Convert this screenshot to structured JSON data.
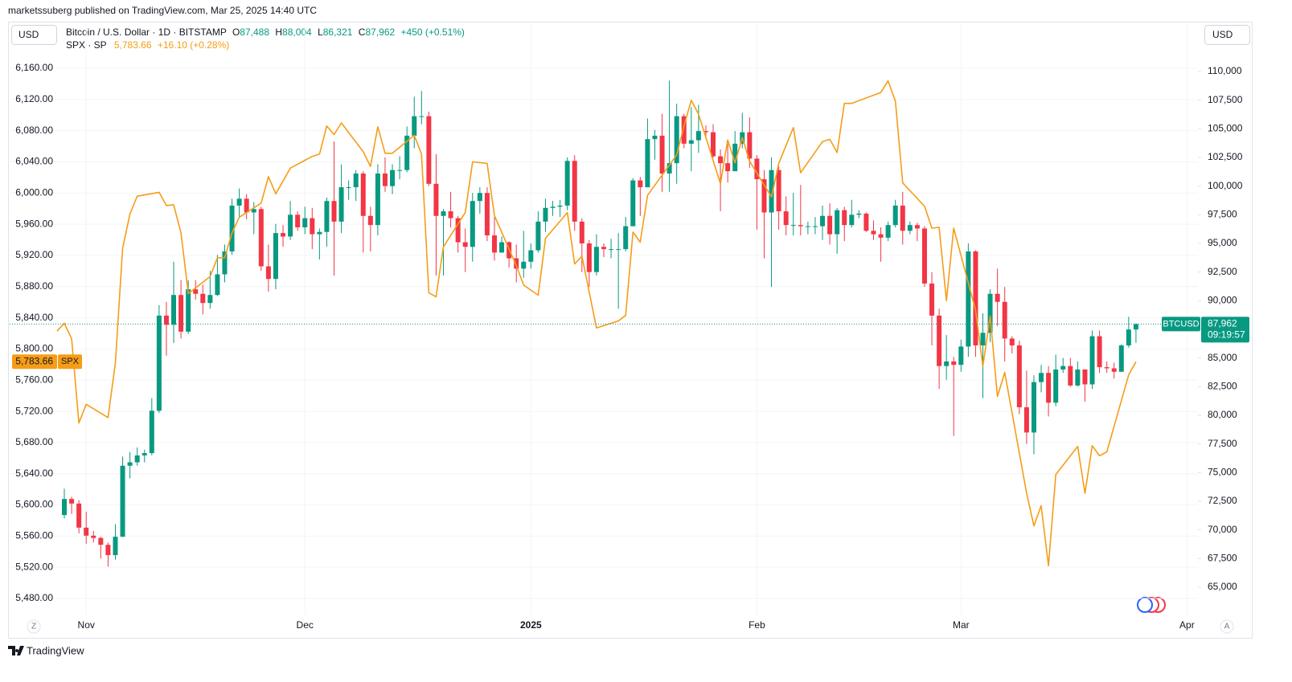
{
  "header": {
    "publisher": "marketssuberg published on TradingView.com, Mar 25, 2025 14:40 UTC",
    "currency_left": "USD",
    "currency_right": "USD",
    "btc_legend": {
      "title": "Bitcoin / U.S. Dollar · 1D · BITSTAMP",
      "o_label": "O",
      "o": "87,488",
      "h_label": "H",
      "h": "88,004",
      "l_label": "L",
      "l": "86,321",
      "c_label": "C",
      "c": "87,962",
      "change": "+450 (+0.51%)"
    },
    "spx_legend": {
      "title": "SPX · SP",
      "value": "5,783.66",
      "change": "+16.10 (+0.28%)"
    }
  },
  "price_tags": {
    "btc": {
      "name": "BTCUSD",
      "price": "87,962",
      "countdown": "09:19:57"
    },
    "spx": {
      "price": "5,783.66",
      "name": "SPX"
    }
  },
  "footer": {
    "brand": "TradingView",
    "z": "Z",
    "a": "A"
  },
  "chart_data": {
    "type": "candlestick",
    "xlim": [
      -7.5,
      155.5
    ],
    "xticks": [
      {
        "value": 3,
        "label": "Nov"
      },
      {
        "value": 33,
        "label": "Dec"
      },
      {
        "value": 64,
        "label": "2025"
      },
      {
        "value": 95,
        "label": "Feb"
      },
      {
        "value": 123,
        "label": "Mar"
      },
      {
        "value": 154,
        "label": "Apr"
      }
    ],
    "ylim": [
      5459.4,
      6175.5
    ],
    "yticks": [
      {
        "value": 5480,
        "label": "5,480.00"
      },
      {
        "value": 5520,
        "label": "5,520.00"
      },
      {
        "value": 5560,
        "label": "5,560.00"
      },
      {
        "value": 5600,
        "label": "5,600.00"
      },
      {
        "value": 5640,
        "label": "5,640.00"
      },
      {
        "value": 5680,
        "label": "5,680.00"
      },
      {
        "value": 5720,
        "label": "5,720.00"
      },
      {
        "value": 5760,
        "label": "5,760.00"
      },
      {
        "value": 5800,
        "label": "5,800.00"
      },
      {
        "value": 5840,
        "label": "5,840.00"
      },
      {
        "value": 5880,
        "label": "5,880.00"
      },
      {
        "value": 5920,
        "label": "5,920.00"
      },
      {
        "value": 5960,
        "label": "5,960.00"
      },
      {
        "value": 6000,
        "label": "6,000.00"
      },
      {
        "value": 6040,
        "label": "6,040.00"
      },
      {
        "value": 6080,
        "label": "6,080.00"
      },
      {
        "value": 6120,
        "label": "6,120.00"
      },
      {
        "value": 6160,
        "label": "6,160.00"
      }
    ],
    "y2lim": [
      62617,
      111332
    ],
    "y2ticks": [
      {
        "value": 65000,
        "label": "65,000"
      },
      {
        "value": 67500,
        "label": "67,500"
      },
      {
        "value": 70000,
        "label": "70,000"
      },
      {
        "value": 72500,
        "label": "72,500"
      },
      {
        "value": 75000,
        "label": "75,000"
      },
      {
        "value": 77500,
        "label": "77,500"
      },
      {
        "value": 80000,
        "label": "80,000"
      },
      {
        "value": 82500,
        "label": "82,500"
      },
      {
        "value": 85000,
        "label": "85,000"
      },
      {
        "value": 87500,
        "label": "87,500"
      },
      {
        "value": 90000,
        "label": "90,000"
      },
      {
        "value": 92500,
        "label": "92,500"
      },
      {
        "value": 95000,
        "label": "95,000"
      },
      {
        "value": 97500,
        "label": "97,500"
      },
      {
        "value": 100000,
        "label": "100,000"
      },
      {
        "value": 102500,
        "label": "102,500"
      },
      {
        "value": 105000,
        "label": "105,000"
      },
      {
        "value": 107500,
        "label": "107,500"
      },
      {
        "value": 110000,
        "label": "110,000"
      }
    ],
    "grid": true,
    "series": [
      {
        "name": "BTCUSD",
        "type": "candlestick",
        "axis": "y2",
        "up_color": "#089981",
        "down_color": "#f23645",
        "open": [
          71300,
          72700,
          72300,
          70200,
          69500,
          69300,
          68700,
          67800,
          69400,
          75600,
          75900,
          76500,
          76700,
          80400,
          88700,
          87900,
          90500,
          87300,
          91000,
          90600,
          89800,
          90500,
          92300,
          94300,
          98300,
          98900,
          97700,
          98000,
          93000,
          91900,
          95900,
          95600,
          97500,
          96400,
          97200,
          95800,
          96000,
          98700,
          96900,
          99900,
          99900,
          101100,
          97400,
          96600,
          101100,
          100000,
          101400,
          101400,
          104400,
          106100,
          106100,
          100200,
          97400,
          97800,
          97200,
          95100,
          94700,
          98700,
          99400,
          95700,
          94200,
          95100,
          93700,
          92800,
          93400,
          94400,
          96900,
          98100,
          98200,
          98300,
          102200,
          96900,
          95000,
          92500,
          94700,
          94500,
          94500,
          94500,
          96500,
          100500,
          99900,
          104100,
          104400,
          101100,
          102000,
          106100,
          103700,
          104000,
          104800,
          104700,
          102600,
          102000,
          101300,
          103700,
          104700,
          102400,
          100600,
          97700,
          101400,
          97800,
          96600,
          96600,
          96500,
          96500,
          96500,
          97400,
          95800,
          97900,
          96600,
          97500,
          97600,
          96100,
          95800,
          95500,
          96600,
          98300,
          96100,
          96600,
          96300,
          91500,
          88700,
          84300,
          84700,
          84400,
          86000,
          94300,
          86100,
          87200,
          90600,
          89900,
          86700,
          86100,
          80700,
          78500,
          82900,
          83700,
          81100,
          84000,
          84300,
          82600,
          84000,
          82700,
          86900,
          84200,
          84100,
          83800,
          86100,
          87488
        ],
        "high": [
          73600,
          72900,
          72600,
          71600,
          69900,
          69400,
          68900,
          70500,
          76400,
          76800,
          77200,
          77000,
          81500,
          89600,
          89900,
          93400,
          91800,
          91800,
          91800,
          91400,
          92600,
          94000,
          94900,
          98900,
          99800,
          99300,
          98600,
          98200,
          94900,
          96700,
          96600,
          98700,
          97800,
          98200,
          98100,
          96300,
          99000,
          103900,
          101900,
          100500,
          101400,
          101300,
          98200,
          101900,
          102500,
          101900,
          102600,
          105200,
          107800,
          108300,
          106500,
          102800,
          98000,
          99500,
          97400,
          96300,
          99400,
          99900,
          99900,
          97300,
          95600,
          95200,
          94900,
          96100,
          95000,
          97800,
          98900,
          98700,
          98800,
          102500,
          102700,
          97200,
          95300,
          95800,
          95000,
          95400,
          95900,
          97300,
          100700,
          100800,
          105900,
          104900,
          106300,
          109200,
          107200,
          106300,
          106900,
          107100,
          105300,
          105400,
          103200,
          103700,
          104800,
          106400,
          106000,
          102700,
          101400,
          102500,
          101700,
          99100,
          99400,
          100100,
          96900,
          97300,
          98300,
          98500,
          98100,
          98200,
          98800,
          97900,
          97700,
          97000,
          96400,
          96900,
          98800,
          99500,
          96900,
          96800,
          96500,
          92500,
          89300,
          87000,
          85100,
          86600,
          95000,
          94400,
          88900,
          91000,
          92800,
          91200,
          86900,
          86500,
          83900,
          83500,
          84400,
          84300,
          85300,
          85000,
          85000,
          84700,
          84000,
          87400,
          87400,
          84700,
          84600,
          86200,
          88600,
          88004
        ],
        "low": [
          71000,
          71400,
          69700,
          68800,
          68900,
          67500,
          66800,
          67400,
          69400,
          74500,
          75600,
          75900,
          76500,
          80200,
          85200,
          86300,
          86700,
          87100,
          90100,
          88800,
          89300,
          90400,
          91600,
          94000,
          97200,
          97100,
          95800,
          92600,
          90800,
          91000,
          94700,
          95300,
          96100,
          95800,
          94500,
          93600,
          94700,
          92200,
          95900,
          98800,
          98700,
          94200,
          94300,
          95700,
          99500,
          99300,
          100600,
          101200,
          103300,
          105400,
          100000,
          92200,
          92200,
          96400,
          94200,
          92500,
          93400,
          97600,
          95200,
          93500,
          94200,
          92900,
          91600,
          92000,
          92800,
          94200,
          96000,
          97400,
          97300,
          97900,
          96100,
          92500,
          91200,
          92200,
          93800,
          93700,
          89300,
          94300,
          96500,
          97400,
          99900,
          102300,
          99500,
          99500,
          100200,
          103300,
          101300,
          102900,
          104100,
          102500,
          97800,
          100300,
          101300,
          103300,
          101600,
          96200,
          93700,
          91200,
          96200,
          95700,
          95700,
          95700,
          95800,
          95800,
          95300,
          94900,
          94100,
          95200,
          96400,
          97200,
          96000,
          95300,
          93400,
          95200,
          96400,
          94900,
          95800,
          95200,
          91200,
          86100,
          82300,
          83100,
          78200,
          83800,
          85100,
          85100,
          81500,
          86400,
          87800,
          84700,
          85400,
          80100,
          77500,
          76600,
          82000,
          79900,
          80800,
          83700,
          82500,
          82500,
          81200,
          82300,
          83700,
          83700,
          83200,
          83800,
          85900,
          86321
        ],
        "close": [
          72700,
          72300,
          70200,
          69500,
          69300,
          68700,
          67800,
          69400,
          75600,
          75900,
          76500,
          76700,
          80400,
          88700,
          87900,
          90500,
          87300,
          91000,
          90600,
          89800,
          90500,
          92300,
          94300,
          98300,
          98900,
          97700,
          98000,
          93000,
          91900,
          95900,
          95600,
          97500,
          96400,
          97200,
          95800,
          96000,
          98700,
          96900,
          99900,
          99900,
          101100,
          97400,
          96600,
          101100,
          100000,
          101400,
          101400,
          104400,
          106100,
          106100,
          100200,
          97400,
          97800,
          97200,
          95100,
          94700,
          98700,
          99400,
          95700,
          94200,
          95100,
          93700,
          92800,
          93400,
          94400,
          96900,
          98100,
          98200,
          98300,
          102200,
          96900,
          95000,
          92500,
          94700,
          94500,
          94500,
          94500,
          96500,
          100500,
          99900,
          104100,
          104400,
          101100,
          102000,
          106100,
          103700,
          104000,
          104800,
          104700,
          102600,
          102000,
          101300,
          103700,
          104700,
          102400,
          100600,
          97700,
          101400,
          97800,
          96600,
          96600,
          96500,
          96500,
          96500,
          97400,
          95800,
          97900,
          96600,
          97500,
          97600,
          96100,
          95800,
          95500,
          96600,
          98300,
          96100,
          96600,
          96300,
          91500,
          88700,
          84300,
          84700,
          84400,
          86000,
          94300,
          86100,
          87200,
          90600,
          89900,
          86700,
          86100,
          80700,
          78500,
          82900,
          83700,
          81100,
          84000,
          84300,
          82600,
          84000,
          82700,
          86900,
          84200,
          84100,
          83800,
          86100,
          87488,
          87962
        ]
      },
      {
        "name": "SPX",
        "type": "line",
        "color": "#f59d16",
        "x": [
          -1,
          0,
          1,
          2,
          3,
          6,
          7,
          8,
          9,
          10,
          13,
          14,
          15,
          16,
          17,
          20,
          21,
          22,
          23,
          24,
          27,
          28,
          29,
          31,
          34,
          35,
          36,
          37,
          38,
          41,
          42,
          43,
          44,
          45,
          48,
          49,
          50,
          51,
          52,
          55,
          56,
          58,
          59,
          62,
          63,
          65,
          66,
          69,
          70,
          71,
          73,
          76,
          77,
          78,
          79,
          80,
          84,
          85,
          86,
          87,
          90,
          91,
          92,
          93,
          94,
          97,
          98,
          99,
          100,
          101,
          104,
          105,
          106,
          107,
          108,
          112,
          113,
          114,
          115,
          118,
          119,
          120,
          121,
          122,
          125,
          126,
          127,
          128,
          129,
          132,
          133,
          134,
          135,
          136,
          139,
          140,
          141,
          142,
          143,
          146,
          147
        ],
        "values": [
          5823,
          5833,
          5813,
          5705,
          5729,
          5712,
          5782,
          5929,
          5973,
          5996,
          6001,
          5984,
          5985,
          5949,
          5871,
          5893,
          5917,
          5917,
          5949,
          5969,
          5987,
          6021,
          5999,
          6032,
          6047,
          6050,
          6086,
          6075,
          6090,
          6053,
          6034,
          6085,
          6051,
          6051,
          6074,
          6050,
          5872,
          5867,
          5931,
          5975,
          6040,
          6038,
          5971,
          5907,
          5882,
          5869,
          5942,
          5975,
          5909,
          5919,
          5827,
          5836,
          5843,
          5950,
          5937,
          5997,
          6049,
          6086,
          6119,
          6101,
          6012,
          6068,
          6039,
          6071,
          6041,
          5995,
          6038,
          6061,
          6084,
          6026,
          6066,
          6069,
          6052,
          6115,
          6115,
          6129,
          6144,
          6118,
          6013,
          5983,
          5955,
          5956,
          5862,
          5955,
          5850,
          5778,
          5842,
          5739,
          5770,
          5615,
          5573,
          5599,
          5522,
          5639,
          5675,
          5615,
          5676,
          5663,
          5668,
          5767,
          5783.66
        ]
      }
    ]
  }
}
